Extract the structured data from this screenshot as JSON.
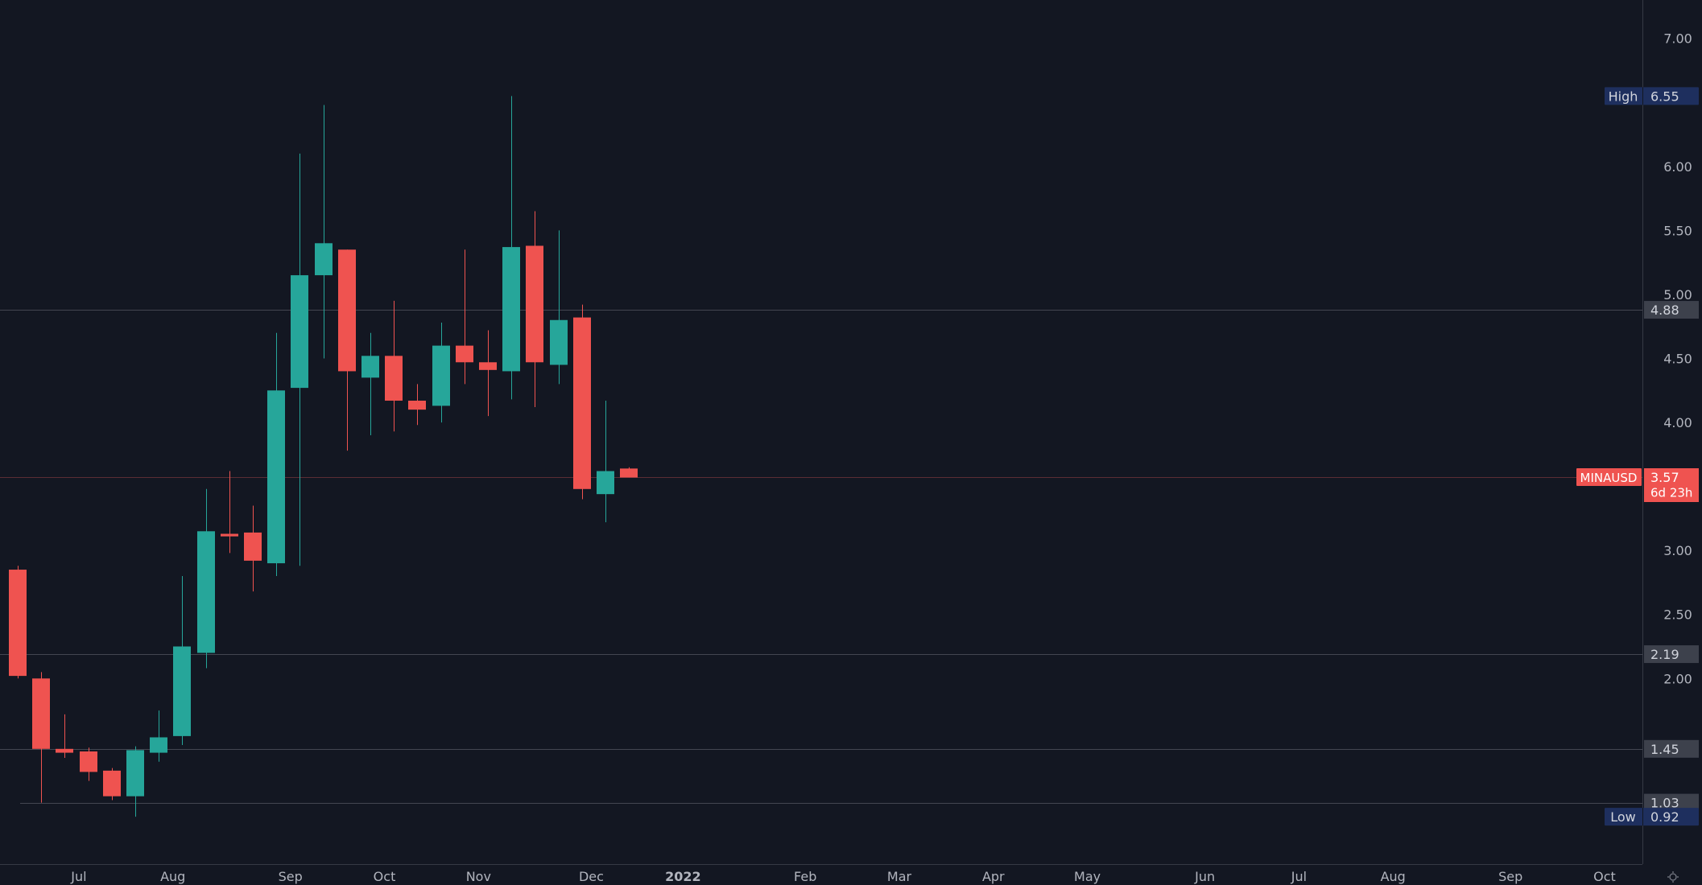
{
  "chart_data": {
    "type": "candlestick",
    "symbol": "MINAUSD",
    "countdown": "6d 23h",
    "high": {
      "label": "High",
      "value": "6.55"
    },
    "low": {
      "label": "Low",
      "value": "0.92"
    },
    "y_axis": {
      "min": 0.55,
      "max": 7.3,
      "ticks": [
        "7.00",
        "6.00",
        "5.50",
        "5.00",
        "4.50",
        "4.00",
        "3.00",
        "2.50",
        "2.00"
      ]
    },
    "x_axis_labels": [
      {
        "label": "Jul",
        "week": 2.6,
        "bold": false
      },
      {
        "label": "Aug",
        "week": 6.6,
        "bold": false
      },
      {
        "label": "Sep",
        "week": 11.6,
        "bold": false
      },
      {
        "label": "Oct",
        "week": 15.6,
        "bold": false
      },
      {
        "label": "Nov",
        "week": 19.6,
        "bold": false
      },
      {
        "label": "Dec",
        "week": 24.4,
        "bold": false
      },
      {
        "label": "2022",
        "week": 28.3,
        "bold": true
      },
      {
        "label": "Feb",
        "week": 33.5,
        "bold": false
      },
      {
        "label": "Mar",
        "week": 37.5,
        "bold": false
      },
      {
        "label": "Apr",
        "week": 41.5,
        "bold": false
      },
      {
        "label": "May",
        "week": 45.5,
        "bold": false
      },
      {
        "label": "Jun",
        "week": 50.5,
        "bold": false
      },
      {
        "label": "Jul",
        "week": 54.5,
        "bold": false
      },
      {
        "label": "Aug",
        "week": 58.5,
        "bold": false
      },
      {
        "label": "Sep",
        "week": 63.5,
        "bold": false
      },
      {
        "label": "Oct",
        "week": 67.5,
        "bold": false
      }
    ],
    "levels": [
      {
        "value": "4.88",
        "style": "gray"
      },
      {
        "value": "2.19",
        "style": "gray"
      },
      {
        "value": "1.45",
        "style": "gray"
      },
      {
        "value": "1.03",
        "style": "gray"
      }
    ],
    "last_price": "3.57",
    "candles": [
      {
        "week": 0,
        "open": 2.85,
        "high": 2.88,
        "low": 2.0,
        "close": 2.02
      },
      {
        "week": 1,
        "open": 2.0,
        "high": 2.05,
        "low": 1.03,
        "close": 1.45
      },
      {
        "week": 2,
        "open": 1.45,
        "high": 1.72,
        "low": 1.38,
        "close": 1.42
      },
      {
        "week": 3,
        "open": 1.43,
        "high": 1.46,
        "low": 1.2,
        "close": 1.27
      },
      {
        "week": 4,
        "open": 1.28,
        "high": 1.3,
        "low": 1.05,
        "close": 1.08
      },
      {
        "week": 5,
        "open": 1.08,
        "high": 1.47,
        "low": 0.92,
        "close": 1.44
      },
      {
        "week": 6,
        "open": 1.42,
        "high": 1.75,
        "low": 1.35,
        "close": 1.54
      },
      {
        "week": 7,
        "open": 1.55,
        "high": 2.8,
        "low": 1.48,
        "close": 2.25
      },
      {
        "week": 8,
        "open": 2.2,
        "high": 3.48,
        "low": 2.08,
        "close": 3.15
      },
      {
        "week": 9,
        "open": 3.13,
        "high": 3.62,
        "low": 2.98,
        "close": 3.11
      },
      {
        "week": 10,
        "open": 3.14,
        "high": 3.35,
        "low": 2.68,
        "close": 2.92
      },
      {
        "week": 11,
        "open": 2.9,
        "high": 4.7,
        "low": 2.8,
        "close": 4.25
      },
      {
        "week": 12,
        "open": 4.27,
        "high": 6.1,
        "low": 2.88,
        "close": 5.15
      },
      {
        "week": 13,
        "open": 5.15,
        "high": 6.48,
        "low": 4.5,
        "close": 5.4
      },
      {
        "week": 14,
        "open": 5.35,
        "high": 5.35,
        "low": 3.78,
        "close": 4.4
      },
      {
        "week": 15,
        "open": 4.35,
        "high": 4.7,
        "low": 3.9,
        "close": 4.52
      },
      {
        "week": 16,
        "open": 4.52,
        "high": 4.95,
        "low": 3.93,
        "close": 4.17
      },
      {
        "week": 17,
        "open": 4.17,
        "high": 4.3,
        "low": 3.98,
        "close": 4.1
      },
      {
        "week": 18,
        "open": 4.13,
        "high": 4.78,
        "low": 4.0,
        "close": 4.6
      },
      {
        "week": 19,
        "open": 4.6,
        "high": 5.35,
        "low": 4.3,
        "close": 4.47
      },
      {
        "week": 20,
        "open": 4.47,
        "high": 4.72,
        "low": 4.05,
        "close": 4.41
      },
      {
        "week": 21,
        "open": 4.4,
        "high": 6.55,
        "low": 4.18,
        "close": 5.37
      },
      {
        "week": 22,
        "open": 5.38,
        "high": 5.65,
        "low": 4.12,
        "close": 4.47
      },
      {
        "week": 23,
        "open": 4.45,
        "high": 5.5,
        "low": 4.3,
        "close": 4.8
      },
      {
        "week": 24,
        "open": 4.82,
        "high": 4.92,
        "low": 3.4,
        "close": 3.48
      },
      {
        "week": 25,
        "open": 3.44,
        "high": 4.17,
        "low": 3.22,
        "close": 3.62
      },
      {
        "week": 26,
        "open": 3.64,
        "high": 3.65,
        "low": 3.57,
        "close": 3.57
      }
    ]
  }
}
